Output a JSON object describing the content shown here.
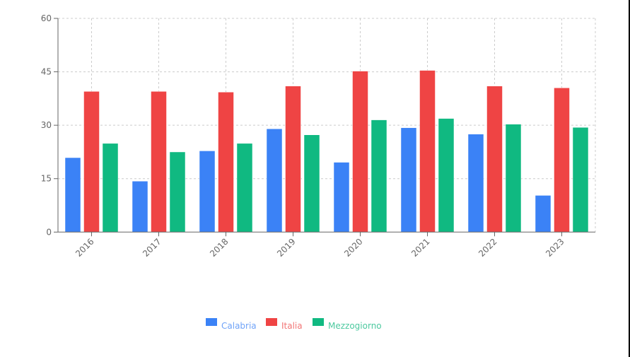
{
  "chart_data": {
    "type": "bar",
    "title": "",
    "xlabel": "",
    "ylabel": "",
    "ylim": [
      0,
      60
    ],
    "yticks": [
      0,
      15,
      30,
      45,
      60
    ],
    "grid": true,
    "legend_position": "bottom",
    "categories": [
      "2016",
      "2017",
      "2018",
      "2019",
      "2020",
      "2021",
      "2022",
      "2023"
    ],
    "series": [
      {
        "name": "Calabria",
        "color": "#3b82f6",
        "label_color": "#6fa3f8",
        "values": [
          20.9,
          14.3,
          22.8,
          29.0,
          19.6,
          29.3,
          27.5,
          10.3
        ]
      },
      {
        "name": "Italia",
        "color": "#ef4444",
        "label_color": "#f27575",
        "values": [
          39.5,
          39.5,
          39.3,
          41.0,
          45.2,
          45.4,
          41.0,
          40.5
        ]
      },
      {
        "name": "Mezzogiorno",
        "color": "#10b981",
        "label_color": "#4cc99f",
        "values": [
          24.9,
          22.5,
          24.9,
          27.3,
          31.5,
          31.9,
          30.3,
          29.4
        ]
      }
    ]
  },
  "legend": {
    "items": [
      {
        "label": "Calabria"
      },
      {
        "label": "Italia"
      },
      {
        "label": "Mezzogiorno"
      }
    ]
  }
}
